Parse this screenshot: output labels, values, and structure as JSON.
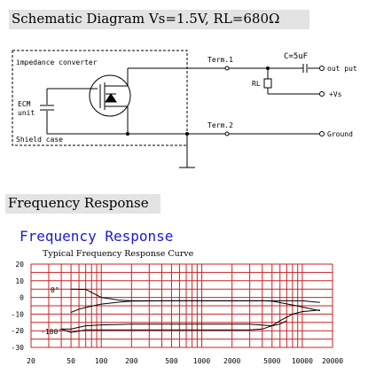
{
  "schematic": {
    "heading": "Schematic Diagram  Vs=1.5V, RL=680Ω",
    "labels": {
      "impedance_converter": "impedance converter",
      "ecm_line1": "ECM",
      "ecm_line2": "unit",
      "shield_case": "Shield case",
      "term1": "Term.1",
      "term2": "Term.2",
      "capacitor": "C=5uF",
      "resistor": "RL",
      "output": "out put",
      "supply": "+Vs",
      "ground": "Ground"
    }
  },
  "frequency": {
    "heading": "Frequency Response"
  },
  "chart_data": {
    "type": "line",
    "title": "Frequency Response",
    "subtitle": "Typical Frequency Response Curve",
    "x_scale": "log",
    "xlim": [
      20,
      20000
    ],
    "ylim": [
      -30,
      20
    ],
    "x_ticks": [
      20,
      50,
      100,
      200,
      500,
      1000,
      2000,
      5000,
      10000,
      20000
    ],
    "y_ticks": [
      20,
      10,
      0,
      -10,
      -20,
      -30
    ],
    "grid": true,
    "annotations": [
      "0°",
      "-180°"
    ],
    "series": [
      {
        "x": [
          50,
          70,
          100,
          150,
          200,
          500,
          1000,
          2000,
          3000,
          5000,
          10000,
          15000
        ],
        "y": [
          5,
          4.8,
          0,
          -1.6,
          -2,
          -2,
          -2,
          -2,
          -2,
          -2,
          -2,
          -3
        ]
      },
      {
        "x": [
          50,
          60,
          70,
          100,
          150,
          200,
          500,
          1000,
          2000,
          4000,
          5000,
          8000,
          15000
        ],
        "y": [
          -9,
          -7,
          -6,
          -4,
          -2.8,
          -2.2,
          -2,
          -2,
          -2,
          -2,
          -2.2,
          -4.5,
          -8
        ]
      },
      {
        "x": [
          40,
          50,
          70,
          100,
          150,
          200,
          500,
          1000,
          2000,
          3000,
          5000,
          6000,
          7000
        ],
        "y": [
          -19,
          -19,
          -17,
          -16.5,
          -16.2,
          -16,
          -16,
          -16,
          -16,
          -16,
          -17,
          -16,
          -14
        ]
      },
      {
        "x": [
          40,
          50,
          70,
          100,
          200,
          500,
          1000,
          2000,
          3000,
          4000,
          5000,
          6000,
          8000,
          10000,
          15000
        ],
        "y": [
          -19,
          -21,
          -19.5,
          -19.5,
          -19.5,
          -19.5,
          -19.5,
          -19.5,
          -19.5,
          -19,
          -17,
          -14,
          -10,
          -8.5,
          -7.5
        ]
      }
    ]
  }
}
